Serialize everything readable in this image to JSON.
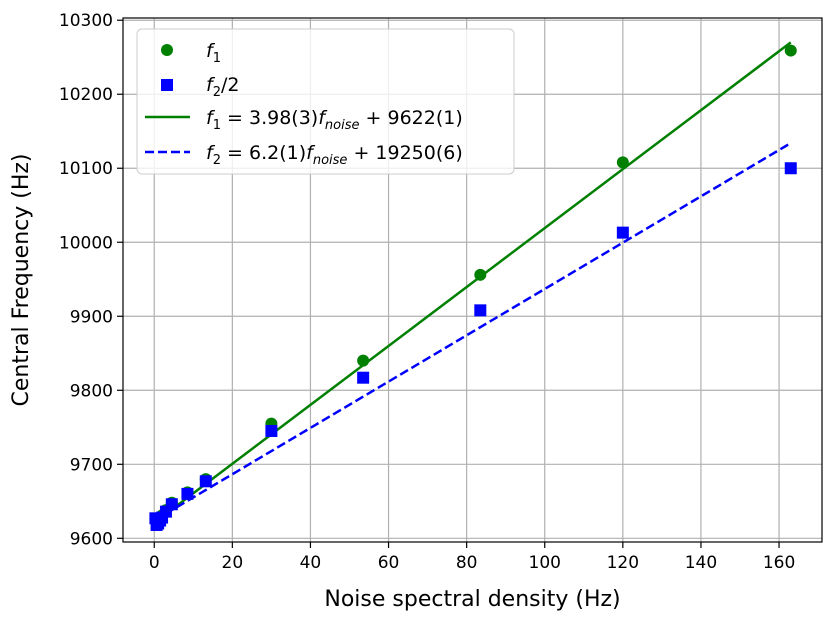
{
  "chart_data": {
    "type": "scatter",
    "xlabel": "Noise spectral density (Hz)",
    "ylabel": "Central Frequency (Hz)",
    "xlim": [
      -8,
      171
    ],
    "ylim": [
      9595,
      10303
    ],
    "xticks": [
      0,
      20,
      40,
      60,
      80,
      100,
      120,
      140,
      160
    ],
    "yticks": [
      9600,
      9700,
      9800,
      9900,
      10000,
      10100,
      10200,
      10300
    ],
    "grid": true,
    "legend_position": "top-left",
    "series": [
      {
        "name": "f1",
        "marker": "circle",
        "color": "#008000",
        "x": [
          0.3,
          0.6,
          1.0,
          1.5,
          2.0,
          3.0,
          4.5,
          8.5,
          13.2,
          30,
          53.5,
          83.5,
          120,
          163
        ],
        "y": [
          9626,
          9622,
          9625,
          9628,
          9631,
          9638,
          9648,
          9662,
          9680,
          9755,
          9840,
          9956,
          10108,
          10259
        ]
      },
      {
        "name": "f2/2",
        "marker": "square",
        "color": "#0000ff",
        "x": [
          0.3,
          0.6,
          1.0,
          1.5,
          2.0,
          3.0,
          4.5,
          8.5,
          13.2,
          30,
          53.5,
          83.5,
          120,
          163
        ],
        "y": [
          9627,
          9618,
          9620,
          9624,
          9628,
          9636,
          9646,
          9660,
          9677,
          9745,
          9817,
          9908,
          10013,
          10100
        ]
      },
      {
        "name": "f1 = 3.98(3)fnoise + 9622(1)",
        "line": "solid",
        "color": "#008000",
        "x": [
          0,
          163
        ],
        "y": [
          9621,
          10270
        ]
      },
      {
        "name": "f2 = 6.2(1)fnoise + 19250(6)",
        "line": "dashed",
        "color": "#0000ff",
        "x": [
          0,
          163
        ],
        "y": [
          9624,
          10134
        ]
      }
    ]
  }
}
